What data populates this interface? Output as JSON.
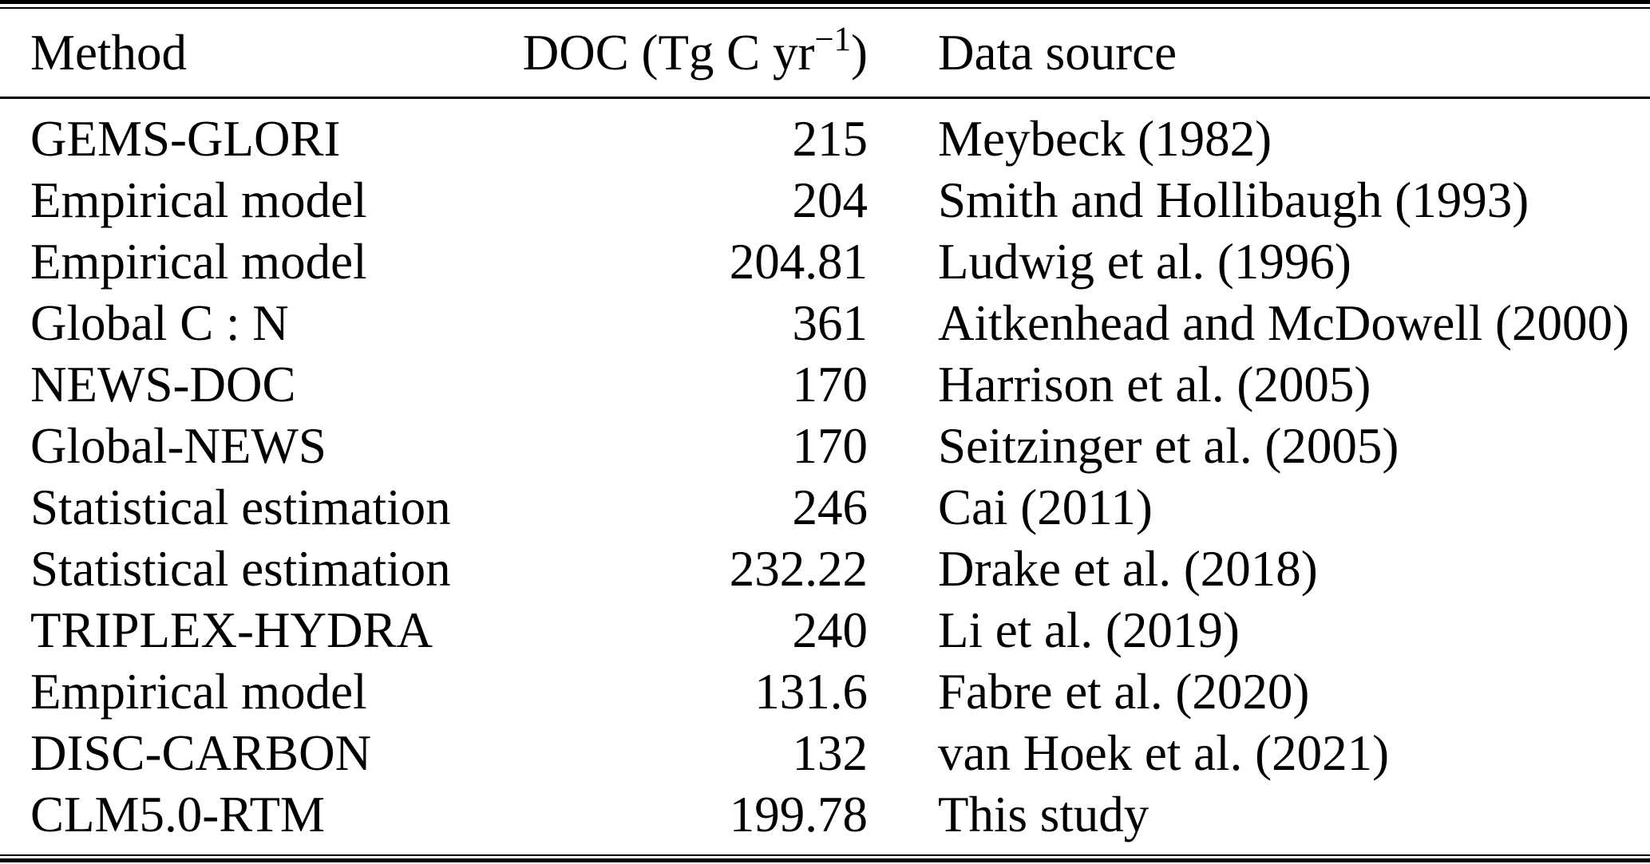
{
  "table": {
    "header": {
      "method": "Method",
      "doc_prefix": "DOC (Tg C yr",
      "doc_sup": "−1",
      "doc_suffix": ")",
      "source": "Data source"
    },
    "rows": [
      {
        "method": "GEMS-GLORI",
        "doc": "215",
        "source": "Meybeck (1982)"
      },
      {
        "method": "Empirical model",
        "doc": "204",
        "source": "Smith and Hollibaugh (1993)"
      },
      {
        "method": "Empirical model",
        "doc": "204.81",
        "source": "Ludwig et al. (1996)"
      },
      {
        "method": "Global C : N",
        "doc": "361",
        "source": "Aitkenhead and McDowell (2000)"
      },
      {
        "method": "NEWS-DOC",
        "doc": "170",
        "source": "Harrison et al. (2005)"
      },
      {
        "method": "Global-NEWS",
        "doc": "170",
        "source": "Seitzinger et al. (2005)"
      },
      {
        "method": "Statistical estimation",
        "doc": "246",
        "source": "Cai (2011)"
      },
      {
        "method": "Statistical estimation",
        "doc": "232.22",
        "source": "Drake et al. (2018)"
      },
      {
        "method": "TRIPLEX-HYDRA",
        "doc": "240",
        "source": "Li et al. (2019)"
      },
      {
        "method": "Empirical model",
        "doc": "131.6",
        "source": "Fabre et al. (2020)"
      },
      {
        "method": "DISC-CARBON",
        "doc": "132",
        "source": "van Hoek et al. (2021)"
      },
      {
        "method": "CLM5.0-RTM",
        "doc": "199.78",
        "source": "This study"
      }
    ],
    "colors": {
      "text": "#000000",
      "background": "#ffffff",
      "rule": "#000000"
    }
  }
}
